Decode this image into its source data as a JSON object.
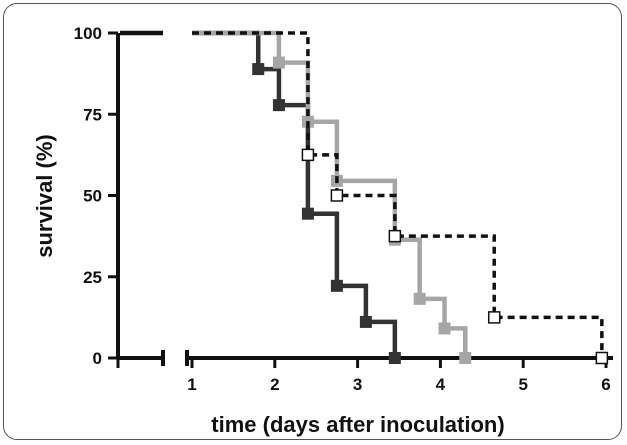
{
  "chart_data": {
    "type": "line",
    "step": true,
    "title": "",
    "xlabel": "time (days after inoculation)",
    "ylabel": "survival (%)",
    "xlim": [
      0,
      6
    ],
    "ylim": [
      0,
      100
    ],
    "x_axis_break": true,
    "x_ticks": [
      1,
      2,
      3,
      4,
      5,
      6
    ],
    "y_ticks": [
      0,
      25,
      50,
      75,
      100
    ],
    "x_tick_labels": [
      "1",
      "2",
      "3",
      "4",
      "5",
      "6"
    ],
    "y_tick_labels": [
      "0",
      "25",
      "50",
      "75",
      "100"
    ],
    "grid": false,
    "legend": null,
    "series": [
      {
        "color": "#333333",
        "line_style": "solid",
        "marker": "filled-square",
        "steps": [
          [
            1.8,
            88.9
          ],
          [
            2.05,
            77.8
          ],
          [
            2.4,
            44.4
          ],
          [
            2.75,
            22.2
          ],
          [
            3.1,
            11.1
          ],
          [
            3.45,
            0
          ]
        ]
      },
      {
        "color": "#a6a6a6",
        "line_style": "solid",
        "marker": "filled-square",
        "steps": [
          [
            2.05,
            90.9
          ],
          [
            2.4,
            72.7
          ],
          [
            2.75,
            54.5
          ],
          [
            3.45,
            36.4
          ],
          [
            3.75,
            18.2
          ],
          [
            4.05,
            9.1
          ],
          [
            4.3,
            0
          ]
        ]
      },
      {
        "color": "#111111",
        "line_style": "dashed",
        "marker": "open-square",
        "steps": [
          [
            2.4,
            62.5
          ],
          [
            2.75,
            50
          ],
          [
            3.45,
            37.5
          ],
          [
            4.65,
            12.5
          ],
          [
            5.95,
            0
          ]
        ]
      }
    ]
  }
}
